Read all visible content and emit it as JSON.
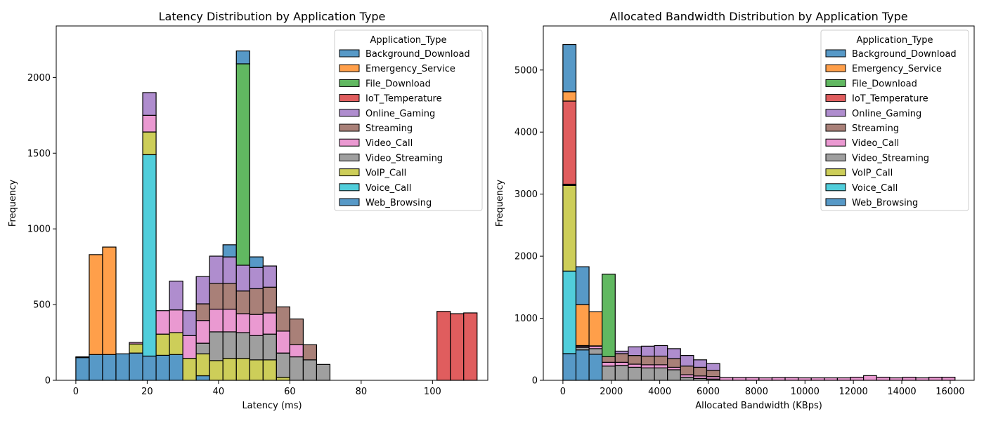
{
  "chart_data": [
    {
      "type": "histogram",
      "title": "Latency Distribution by Application Type",
      "xlabel": "Latency (ms)",
      "ylabel": "Frequency",
      "xlim": [
        -5.5,
        115.5
      ],
      "ylim": [
        0,
        2340
      ],
      "xticks": [
        0,
        20,
        40,
        60,
        80,
        100
      ],
      "yticks": [
        0,
        500,
        1000,
        1500,
        2000
      ],
      "bin_start": 0,
      "bin_width": 3.75,
      "stacking": "stacked",
      "legend_title": "Application_Type",
      "legend_position": "upper right",
      "series": [
        {
          "name": "Background_Download",
          "color": "#1f77b4",
          "values": [
            0,
            0,
            0,
            0,
            0,
            0,
            0,
            0,
            0,
            0,
            0,
            80,
            85,
            70,
            0,
            0,
            0,
            0,
            0,
            0,
            0,
            0,
            0,
            0,
            0,
            0,
            0,
            0,
            0,
            0
          ]
        },
        {
          "name": "Emergency_Service",
          "color": "#ff7f0e",
          "values": [
            0,
            660,
            710,
            0,
            0,
            0,
            0,
            0,
            0,
            0,
            0,
            0,
            0,
            0,
            0,
            0,
            0,
            0,
            0,
            0,
            0,
            0,
            0,
            0,
            0,
            0,
            0,
            0,
            0,
            0
          ]
        },
        {
          "name": "File_Download",
          "color": "#2ca02c",
          "values": [
            0,
            0,
            0,
            0,
            0,
            0,
            0,
            0,
            0,
            0,
            0,
            0,
            1330,
            0,
            0,
            0,
            0,
            0,
            0,
            0,
            0,
            0,
            0,
            0,
            0,
            0,
            0,
            0,
            0,
            0
          ]
        },
        {
          "name": "IoT_Temperature",
          "color": "#d62728",
          "values": [
            0,
            0,
            0,
            0,
            0,
            0,
            0,
            0,
            0,
            0,
            0,
            0,
            0,
            0,
            0,
            0,
            0,
            0,
            0,
            0,
            0,
            0,
            0,
            0,
            0,
            0,
            0,
            455,
            440,
            445
          ]
        },
        {
          "name": "Online_Gaming",
          "color": "#9467bd",
          "values": [
            0,
            0,
            0,
            0,
            0,
            150,
            0,
            190,
            165,
            180,
            180,
            175,
            170,
            140,
            140,
            0,
            0,
            0,
            0,
            0,
            0,
            0,
            0,
            0,
            0,
            0,
            0,
            0,
            0,
            0
          ]
        },
        {
          "name": "Streaming",
          "color": "#8c564b",
          "values": [
            0,
            0,
            0,
            0,
            0,
            0,
            0,
            0,
            0,
            110,
            170,
            170,
            150,
            170,
            170,
            160,
            170,
            100,
            0,
            0,
            0,
            0,
            0,
            0,
            0,
            0,
            0,
            0,
            0,
            0
          ]
        },
        {
          "name": "Video_Call",
          "color": "#e377c2",
          "values": [
            5,
            0,
            0,
            0,
            10,
            110,
            155,
            150,
            150,
            150,
            150,
            150,
            125,
            140,
            140,
            145,
            80,
            0,
            0,
            0,
            0,
            0,
            0,
            0,
            0,
            0,
            0,
            0,
            0,
            0
          ]
        },
        {
          "name": "Video_Streaming",
          "color": "#7f7f7f",
          "values": [
            0,
            0,
            0,
            0,
            0,
            0,
            0,
            0,
            0,
            70,
            190,
            175,
            170,
            160,
            170,
            160,
            155,
            135,
            105,
            0,
            0,
            0,
            0,
            0,
            0,
            0,
            0,
            0,
            0,
            0
          ]
        },
        {
          "name": "VoIP_Call",
          "color": "#bcbd22",
          "values": [
            0,
            0,
            0,
            0,
            60,
            150,
            140,
            145,
            145,
            145,
            130,
            145,
            145,
            135,
            135,
            20,
            0,
            0,
            0,
            0,
            0,
            0,
            0,
            0,
            0,
            0,
            0,
            0,
            0,
            0
          ]
        },
        {
          "name": "Voice_Call",
          "color": "#17becf",
          "values": [
            0,
            0,
            0,
            0,
            0,
            1330,
            0,
            0,
            0,
            0,
            0,
            0,
            0,
            0,
            0,
            0,
            0,
            0,
            0,
            0,
            0,
            0,
            0,
            0,
            0,
            0,
            0,
            0,
            0,
            0
          ]
        },
        {
          "name": "Web_Browsing",
          "color": "#1f77b4",
          "values": [
            150,
            170,
            170,
            175,
            180,
            160,
            165,
            170,
            0,
            30,
            0,
            0,
            0,
            0,
            0,
            0,
            0,
            0,
            0,
            0,
            0,
            0,
            0,
            0,
            0,
            0,
            0,
            0,
            0,
            0
          ]
        }
      ]
    },
    {
      "type": "histogram",
      "title": "Allocated Bandwidth Distribution by Application Type",
      "xlabel": "Allocated Bandwidth (KBps)",
      "ylabel": "Frequency",
      "xlim": [
        -810,
        16990
      ],
      "ylim": [
        0,
        5710
      ],
      "xticks": [
        0,
        2000,
        4000,
        6000,
        8000,
        10000,
        12000,
        14000,
        16000
      ],
      "yticks": [
        0,
        1000,
        2000,
        3000,
        4000,
        5000
      ],
      "bin_start": 0,
      "bin_width": 540,
      "stacking": "stacked",
      "legend_title": "Application_Type",
      "legend_position": "upper right",
      "series": [
        {
          "name": "Background_Download",
          "color": "#1f77b4",
          "values": [
            760,
            610,
            0,
            0,
            0,
            0,
            0,
            0,
            0,
            0,
            0,
            0,
            0,
            0,
            0,
            0,
            0,
            0,
            0,
            0,
            0,
            0,
            0,
            0,
            0,
            0,
            0,
            0,
            0,
            0
          ]
        },
        {
          "name": "Emergency_Service",
          "color": "#ff7f0e",
          "values": [
            150,
            660,
            550,
            0,
            0,
            0,
            0,
            0,
            0,
            0,
            0,
            0,
            0,
            0,
            0,
            0,
            0,
            0,
            0,
            0,
            0,
            0,
            0,
            0,
            0,
            0,
            0,
            0,
            0,
            0
          ]
        },
        {
          "name": "File_Download",
          "color": "#2ca02c",
          "values": [
            0,
            0,
            0,
            1330,
            0,
            0,
            0,
            0,
            0,
            0,
            0,
            0,
            0,
            0,
            0,
            0,
            0,
            0,
            0,
            0,
            0,
            0,
            0,
            0,
            0,
            0,
            0,
            0,
            0,
            0
          ]
        },
        {
          "name": "IoT_Temperature",
          "color": "#d62728",
          "values": [
            1340,
            0,
            0,
            0,
            0,
            0,
            0,
            0,
            0,
            0,
            0,
            0,
            0,
            0,
            0,
            0,
            0,
            0,
            0,
            0,
            0,
            0,
            0,
            0,
            0,
            0,
            0,
            0,
            0,
            0
          ]
        },
        {
          "name": "Online_Gaming",
          "color": "#9467bd",
          "values": [
            15,
            10,
            5,
            0,
            40,
            140,
            160,
            170,
            160,
            170,
            120,
            110,
            0,
            0,
            0,
            0,
            0,
            0,
            0,
            0,
            0,
            0,
            0,
            0,
            0,
            0,
            0,
            0,
            0,
            0
          ]
        },
        {
          "name": "Streaming",
          "color": "#8c564b",
          "values": [
            0,
            0,
            0,
            90,
            140,
            140,
            140,
            140,
            140,
            140,
            140,
            100,
            0,
            0,
            0,
            0,
            0,
            0,
            0,
            0,
            0,
            0,
            0,
            0,
            0,
            0,
            0,
            0,
            0,
            0
          ]
        },
        {
          "name": "Video_Call",
          "color": "#e377c2",
          "values": [
            5,
            20,
            40,
            60,
            50,
            50,
            50,
            50,
            40,
            40,
            40,
            40,
            45,
            45,
            45,
            40,
            45,
            45,
            40,
            40,
            40,
            40,
            50,
            75,
            50,
            40,
            50,
            40,
            50,
            50
          ]
        },
        {
          "name": "Video_Streaming",
          "color": "#7f7f7f",
          "values": [
            0,
            40,
            90,
            230,
            240,
            210,
            200,
            200,
            170,
            50,
            30,
            20,
            0,
            0,
            0,
            0,
            0,
            0,
            0,
            0,
            0,
            0,
            0,
            0,
            0,
            0,
            0,
            0,
            0,
            0
          ]
        },
        {
          "name": "VoIP_Call",
          "color": "#bcbd22",
          "values": [
            1380,
            0,
            0,
            0,
            0,
            0,
            0,
            0,
            0,
            0,
            0,
            0,
            0,
            0,
            0,
            0,
            0,
            0,
            0,
            0,
            0,
            0,
            0,
            0,
            0,
            0,
            0,
            0,
            0,
            0
          ]
        },
        {
          "name": "Voice_Call",
          "color": "#17becf",
          "values": [
            1330,
            0,
            0,
            0,
            0,
            0,
            0,
            0,
            0,
            0,
            0,
            0,
            0,
            0,
            0,
            0,
            0,
            0,
            0,
            0,
            0,
            0,
            0,
            0,
            0,
            0,
            0,
            0,
            0,
            0
          ]
        },
        {
          "name": "Web_Browsing",
          "color": "#1f77b4",
          "values": [
            430,
            490,
            420,
            0,
            0,
            0,
            0,
            0,
            0,
            0,
            0,
            0,
            0,
            0,
            0,
            0,
            0,
            0,
            0,
            0,
            0,
            0,
            0,
            0,
            0,
            0,
            0,
            0,
            0,
            0
          ]
        }
      ]
    }
  ]
}
